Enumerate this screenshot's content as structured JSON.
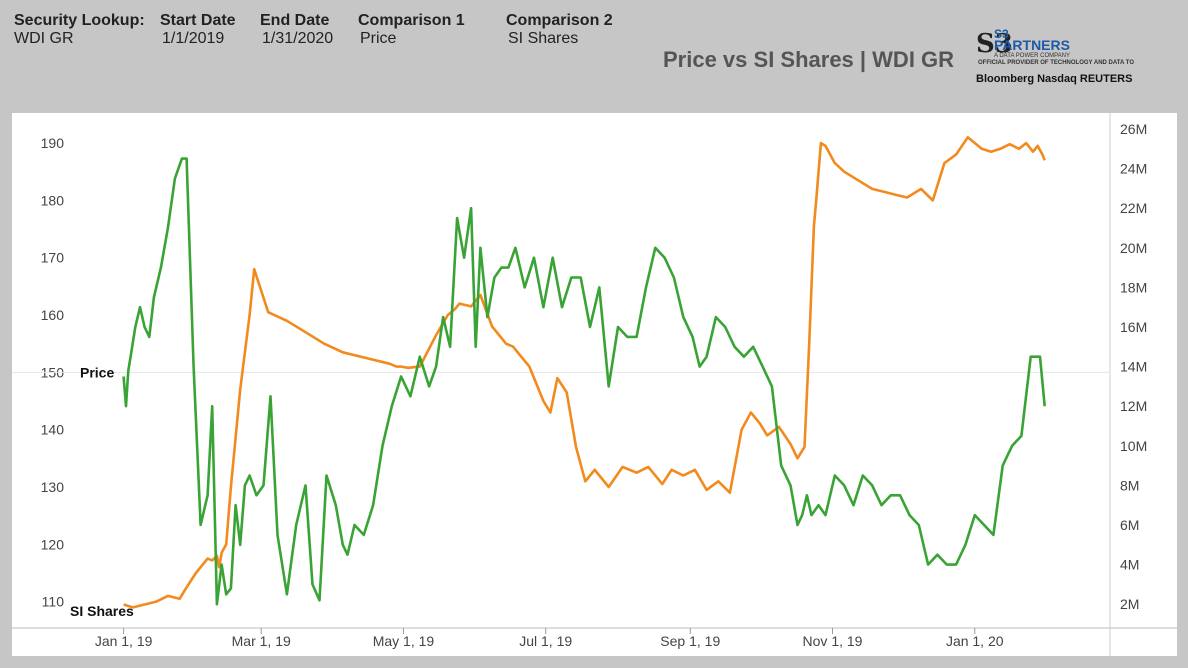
{
  "header": {
    "security_label": "Security Lookup:",
    "security_value": "WDI GR",
    "start_label": "Start Date",
    "start_value": "1/1/2019",
    "end_label": "End Date",
    "end_value": "1/31/2020",
    "comp1_label": "Comparison 1",
    "comp1_value": "Price",
    "comp2_label": "Comparison 2",
    "comp2_value": "SI Shares"
  },
  "title": "Price vs SI Shares | WDI GR",
  "logo": {
    "mark": "S3",
    "line1": "S3",
    "line2": "PARTNERS",
    "line3": "A DATA POWER COMPANY",
    "line4": "OFFICIAL PROVIDER OF TECHNOLOGY AND DATA TO",
    "brands": "Bloomberg  Nasdaq  REUTERS"
  },
  "colors": {
    "price": "#f28a1e",
    "si_shares": "#3aa335",
    "background": "#c6c6c6",
    "plot": "#ffffff"
  },
  "chart_data": {
    "type": "line",
    "title": "Price vs SI Shares | WDI GR",
    "x_tick_labels": [
      "Jan 1, 19",
      "Mar 1, 19",
      "May 1, 19",
      "Jul 1, 19",
      "Sep 1, 19",
      "Nov 1, 19",
      "Jan 1, 20"
    ],
    "x_ticks": [
      "2019-01-01",
      "2019-03-01",
      "2019-05-01",
      "2019-07-01",
      "2019-09-01",
      "2019-11-01",
      "2020-01-01"
    ],
    "xlim": [
      "2018-12-09",
      "2020-02-28"
    ],
    "y_left": {
      "ticks": [
        110,
        120,
        130,
        140,
        150,
        160,
        170,
        180,
        190
      ],
      "ylim": [
        105.4,
        193.5
      ]
    },
    "y_right": {
      "ticks": [
        "2M",
        "4M",
        "6M",
        "8M",
        "10M",
        "12M",
        "14M",
        "16M",
        "18M",
        "20M",
        "22M",
        "24M",
        "26M"
      ],
      "values": [
        2,
        4,
        6,
        8,
        10,
        12,
        14,
        16,
        18,
        20,
        22,
        24,
        26
      ],
      "unit": "M",
      "ylim": [
        0.8,
        26.3
      ]
    },
    "series": [
      {
        "name": "Price",
        "axis": "left",
        "x": [
          "2019-01-01",
          "2019-01-05",
          "2019-01-08",
          "2019-01-15",
          "2019-01-20",
          "2019-01-25",
          "2019-01-28",
          "2019-02-01",
          "2019-02-06",
          "2019-02-08",
          "2019-02-10",
          "2019-02-11",
          "2019-02-12",
          "2019-02-14",
          "2019-02-16",
          "2019-02-20",
          "2019-02-24",
          "2019-02-26",
          "2019-03-04",
          "2019-03-12",
          "2019-03-20",
          "2019-03-28",
          "2019-04-05",
          "2019-04-15",
          "2019-04-25",
          "2019-04-28",
          "2019-04-30",
          "2019-05-03",
          "2019-05-08",
          "2019-05-15",
          "2019-05-20",
          "2019-05-23",
          "2019-05-25",
          "2019-05-30",
          "2019-06-03",
          "2019-06-08",
          "2019-06-14",
          "2019-06-17",
          "2019-06-20",
          "2019-06-24",
          "2019-06-30",
          "2019-07-03",
          "2019-07-06",
          "2019-07-10",
          "2019-07-14",
          "2019-07-18",
          "2019-07-22",
          "2019-07-28",
          "2019-08-03",
          "2019-08-09",
          "2019-08-14",
          "2019-08-20",
          "2019-08-24",
          "2019-08-29",
          "2019-09-03",
          "2019-09-08",
          "2019-09-13",
          "2019-09-18",
          "2019-09-23",
          "2019-09-27",
          "2019-10-01",
          "2019-10-04",
          "2019-10-09",
          "2019-10-14",
          "2019-10-17",
          "2019-10-20",
          "2019-10-22",
          "2019-10-24",
          "2019-10-25",
          "2019-10-27",
          "2019-10-29",
          "2019-11-02",
          "2019-11-06",
          "2019-11-12",
          "2019-11-18",
          "2019-11-23",
          "2019-11-28",
          "2019-12-03",
          "2019-12-09",
          "2019-12-14",
          "2019-12-19",
          "2019-12-24",
          "2019-12-29",
          "2020-01-04",
          "2020-01-08",
          "2020-01-12",
          "2020-01-16",
          "2020-01-20",
          "2020-01-23",
          "2020-01-26",
          "2020-01-28",
          "2020-01-30",
          "2020-01-31"
        ],
        "values": [
          109.5,
          109.0,
          109.3,
          110.0,
          111.0,
          110.5,
          112.5,
          115.0,
          117.5,
          117.2,
          118.0,
          116.0,
          118.5,
          120.0,
          130.0,
          147.0,
          160.0,
          168.0,
          160.5,
          159.0,
          157.0,
          155.0,
          153.5,
          152.5,
          151.5,
          151.0,
          151.0,
          150.8,
          151.0,
          156.5,
          160.0,
          161.0,
          162.0,
          161.5,
          163.5,
          158.0,
          155.0,
          154.5,
          153.0,
          151.0,
          145.0,
          143.0,
          149.0,
          146.5,
          137.0,
          131.0,
          133.0,
          130.0,
          133.5,
          132.5,
          133.5,
          130.5,
          133.0,
          132.0,
          133.0,
          129.5,
          131.0,
          129.0,
          140.0,
          143.0,
          141.0,
          139.0,
          140.5,
          137.5,
          135.0,
          137.0,
          155.0,
          175.5,
          180.0,
          190.0,
          189.5,
          186.5,
          185.0,
          183.5,
          182.0,
          181.5,
          181.0,
          180.5,
          182.0,
          180.0,
          186.5,
          188.0,
          191.0,
          189.0,
          188.5,
          189.0,
          189.8,
          189.0,
          190.0,
          188.5,
          189.5,
          188.0,
          187.0
        ],
        "color": "#f28a1e"
      },
      {
        "name": "SI Shares",
        "axis": "right",
        "x": [
          "2019-01-01",
          "2019-01-02",
          "2019-01-03",
          "2019-01-04",
          "2019-01-06",
          "2019-01-08",
          "2019-01-10",
          "2019-01-12",
          "2019-01-14",
          "2019-01-17",
          "2019-01-20",
          "2019-01-23",
          "2019-01-26",
          "2019-01-28",
          "2019-01-31",
          "2019-02-03",
          "2019-02-06",
          "2019-02-08",
          "2019-02-10",
          "2019-02-12",
          "2019-02-14",
          "2019-02-16",
          "2019-02-18",
          "2019-02-20",
          "2019-02-22",
          "2019-02-24",
          "2019-02-27",
          "2019-03-02",
          "2019-03-05",
          "2019-03-08",
          "2019-03-12",
          "2019-03-16",
          "2019-03-20",
          "2019-03-23",
          "2019-03-26",
          "2019-03-29",
          "2019-04-02",
          "2019-04-05",
          "2019-04-07",
          "2019-04-10",
          "2019-04-14",
          "2019-04-18",
          "2019-04-22",
          "2019-04-26",
          "2019-04-30",
          "2019-05-04",
          "2019-05-08",
          "2019-05-12",
          "2019-05-15",
          "2019-05-18",
          "2019-05-21",
          "2019-05-24",
          "2019-05-27",
          "2019-05-30",
          "2019-06-01",
          "2019-06-03",
          "2019-06-06",
          "2019-06-09",
          "2019-06-12",
          "2019-06-15",
          "2019-06-18",
          "2019-06-22",
          "2019-06-26",
          "2019-06-30",
          "2019-07-04",
          "2019-07-08",
          "2019-07-12",
          "2019-07-16",
          "2019-07-20",
          "2019-07-24",
          "2019-07-28",
          "2019-08-01",
          "2019-08-05",
          "2019-08-09",
          "2019-08-13",
          "2019-08-17",
          "2019-08-21",
          "2019-08-25",
          "2019-08-29",
          "2019-09-02",
          "2019-09-05",
          "2019-09-08",
          "2019-09-12",
          "2019-09-16",
          "2019-09-20",
          "2019-09-24",
          "2019-09-28",
          "2019-10-02",
          "2019-10-06",
          "2019-10-10",
          "2019-10-14",
          "2019-10-17",
          "2019-10-19",
          "2019-10-21",
          "2019-10-23",
          "2019-10-26",
          "2019-10-29",
          "2019-11-02",
          "2019-11-06",
          "2019-11-10",
          "2019-11-14",
          "2019-11-18",
          "2019-11-22",
          "2019-11-26",
          "2019-11-30",
          "2019-12-04",
          "2019-12-08",
          "2019-12-12",
          "2019-12-16",
          "2019-12-20",
          "2019-12-24",
          "2019-12-28",
          "2020-01-01",
          "2020-01-05",
          "2020-01-09",
          "2020-01-13",
          "2020-01-17",
          "2020-01-21",
          "2020-01-25",
          "2020-01-29",
          "2020-01-31"
        ],
        "values": [
          13.5,
          12.0,
          13.8,
          14.5,
          16.0,
          17.0,
          16.0,
          15.5,
          17.5,
          19.0,
          21.0,
          23.5,
          24.5,
          24.5,
          14.0,
          6.0,
          7.5,
          12.0,
          2.0,
          4.0,
          2.5,
          2.8,
          7.0,
          5.0,
          8.0,
          8.5,
          7.5,
          8.0,
          12.5,
          5.5,
          2.5,
          6.0,
          8.0,
          3.0,
          2.2,
          8.5,
          7.0,
          5.0,
          4.5,
          6.0,
          5.5,
          7.0,
          10.0,
          12.0,
          13.5,
          12.5,
          14.5,
          13.0,
          14.0,
          16.5,
          15.0,
          21.5,
          19.5,
          22.0,
          15.0,
          20.0,
          16.5,
          18.5,
          19.0,
          19.0,
          20.0,
          18.0,
          19.5,
          17.0,
          19.5,
          17.0,
          18.5,
          18.5,
          16.0,
          18.0,
          13.0,
          16.0,
          15.5,
          15.5,
          18.0,
          20.0,
          19.5,
          18.5,
          16.5,
          15.5,
          14.0,
          14.5,
          16.5,
          16.0,
          15.0,
          14.5,
          15.0,
          14.0,
          13.0,
          9.0,
          8.0,
          6.0,
          6.5,
          7.5,
          6.5,
          7.0,
          6.5,
          8.5,
          8.0,
          7.0,
          8.5,
          8.0,
          7.0,
          7.5,
          7.5,
          6.5,
          6.0,
          4.0,
          4.5,
          4.0,
          4.0,
          5.0,
          6.5,
          6.0,
          5.5,
          9.0,
          10.0,
          10.5,
          14.5,
          14.5,
          12.0
        ],
        "color": "#3aa335"
      }
    ],
    "annotations": [
      "Price",
      "SI Shares"
    ],
    "grid": false,
    "legend": "none"
  }
}
